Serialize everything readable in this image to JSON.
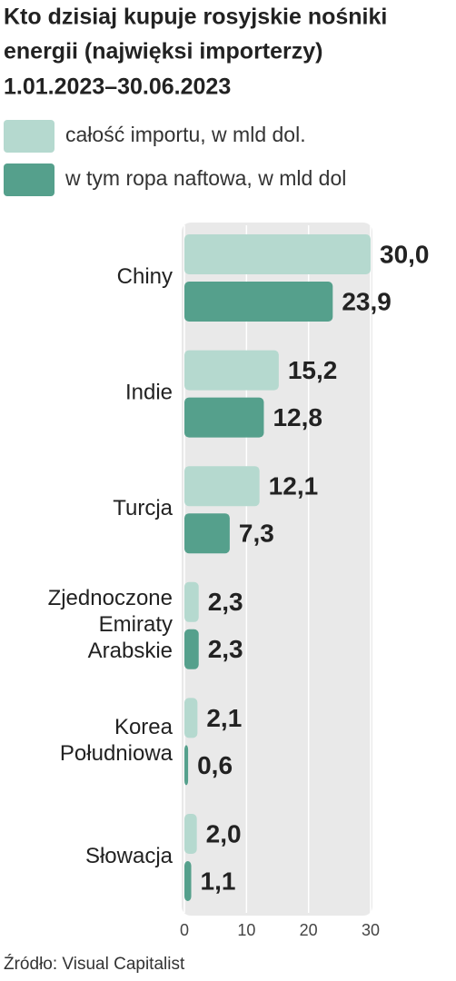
{
  "chart_data": {
    "type": "bar",
    "orientation": "horizontal",
    "title": [
      "Kto dzisiaj kupuje rosyjskie nośniki",
      "energii (najwięksi  importerzy)"
    ],
    "subtitle": "1.01.2023–30.06.2023",
    "categories": [
      "Chiny",
      "Indie",
      "Turcja",
      "Zjednoczone Emiraty Arabskie",
      "Korea Południowa",
      "Słowacja"
    ],
    "series": [
      {
        "name": "całość importu, w mld dol.",
        "color": "#b5d9cf",
        "values": [
          30.0,
          15.2,
          12.1,
          2.3,
          2.1,
          2.0
        ],
        "value_labels": [
          "30,0",
          "15,2",
          "12,1",
          "2,3",
          "2,1",
          "2,0"
        ]
      },
      {
        "name": "w tym ropa naftowa, w mld dol",
        "color": "#55a08c",
        "values": [
          23.9,
          12.8,
          7.3,
          2.3,
          0.6,
          1.1
        ],
        "value_labels": [
          "23,9",
          "12,8",
          "7,3",
          "2,3",
          "0,6",
          "1,1"
        ]
      }
    ],
    "xlim": [
      0,
      30
    ],
    "xticks": [
      0,
      10,
      20,
      30
    ],
    "grid": true,
    "source": "Źródło: Visual Capitalist"
  }
}
